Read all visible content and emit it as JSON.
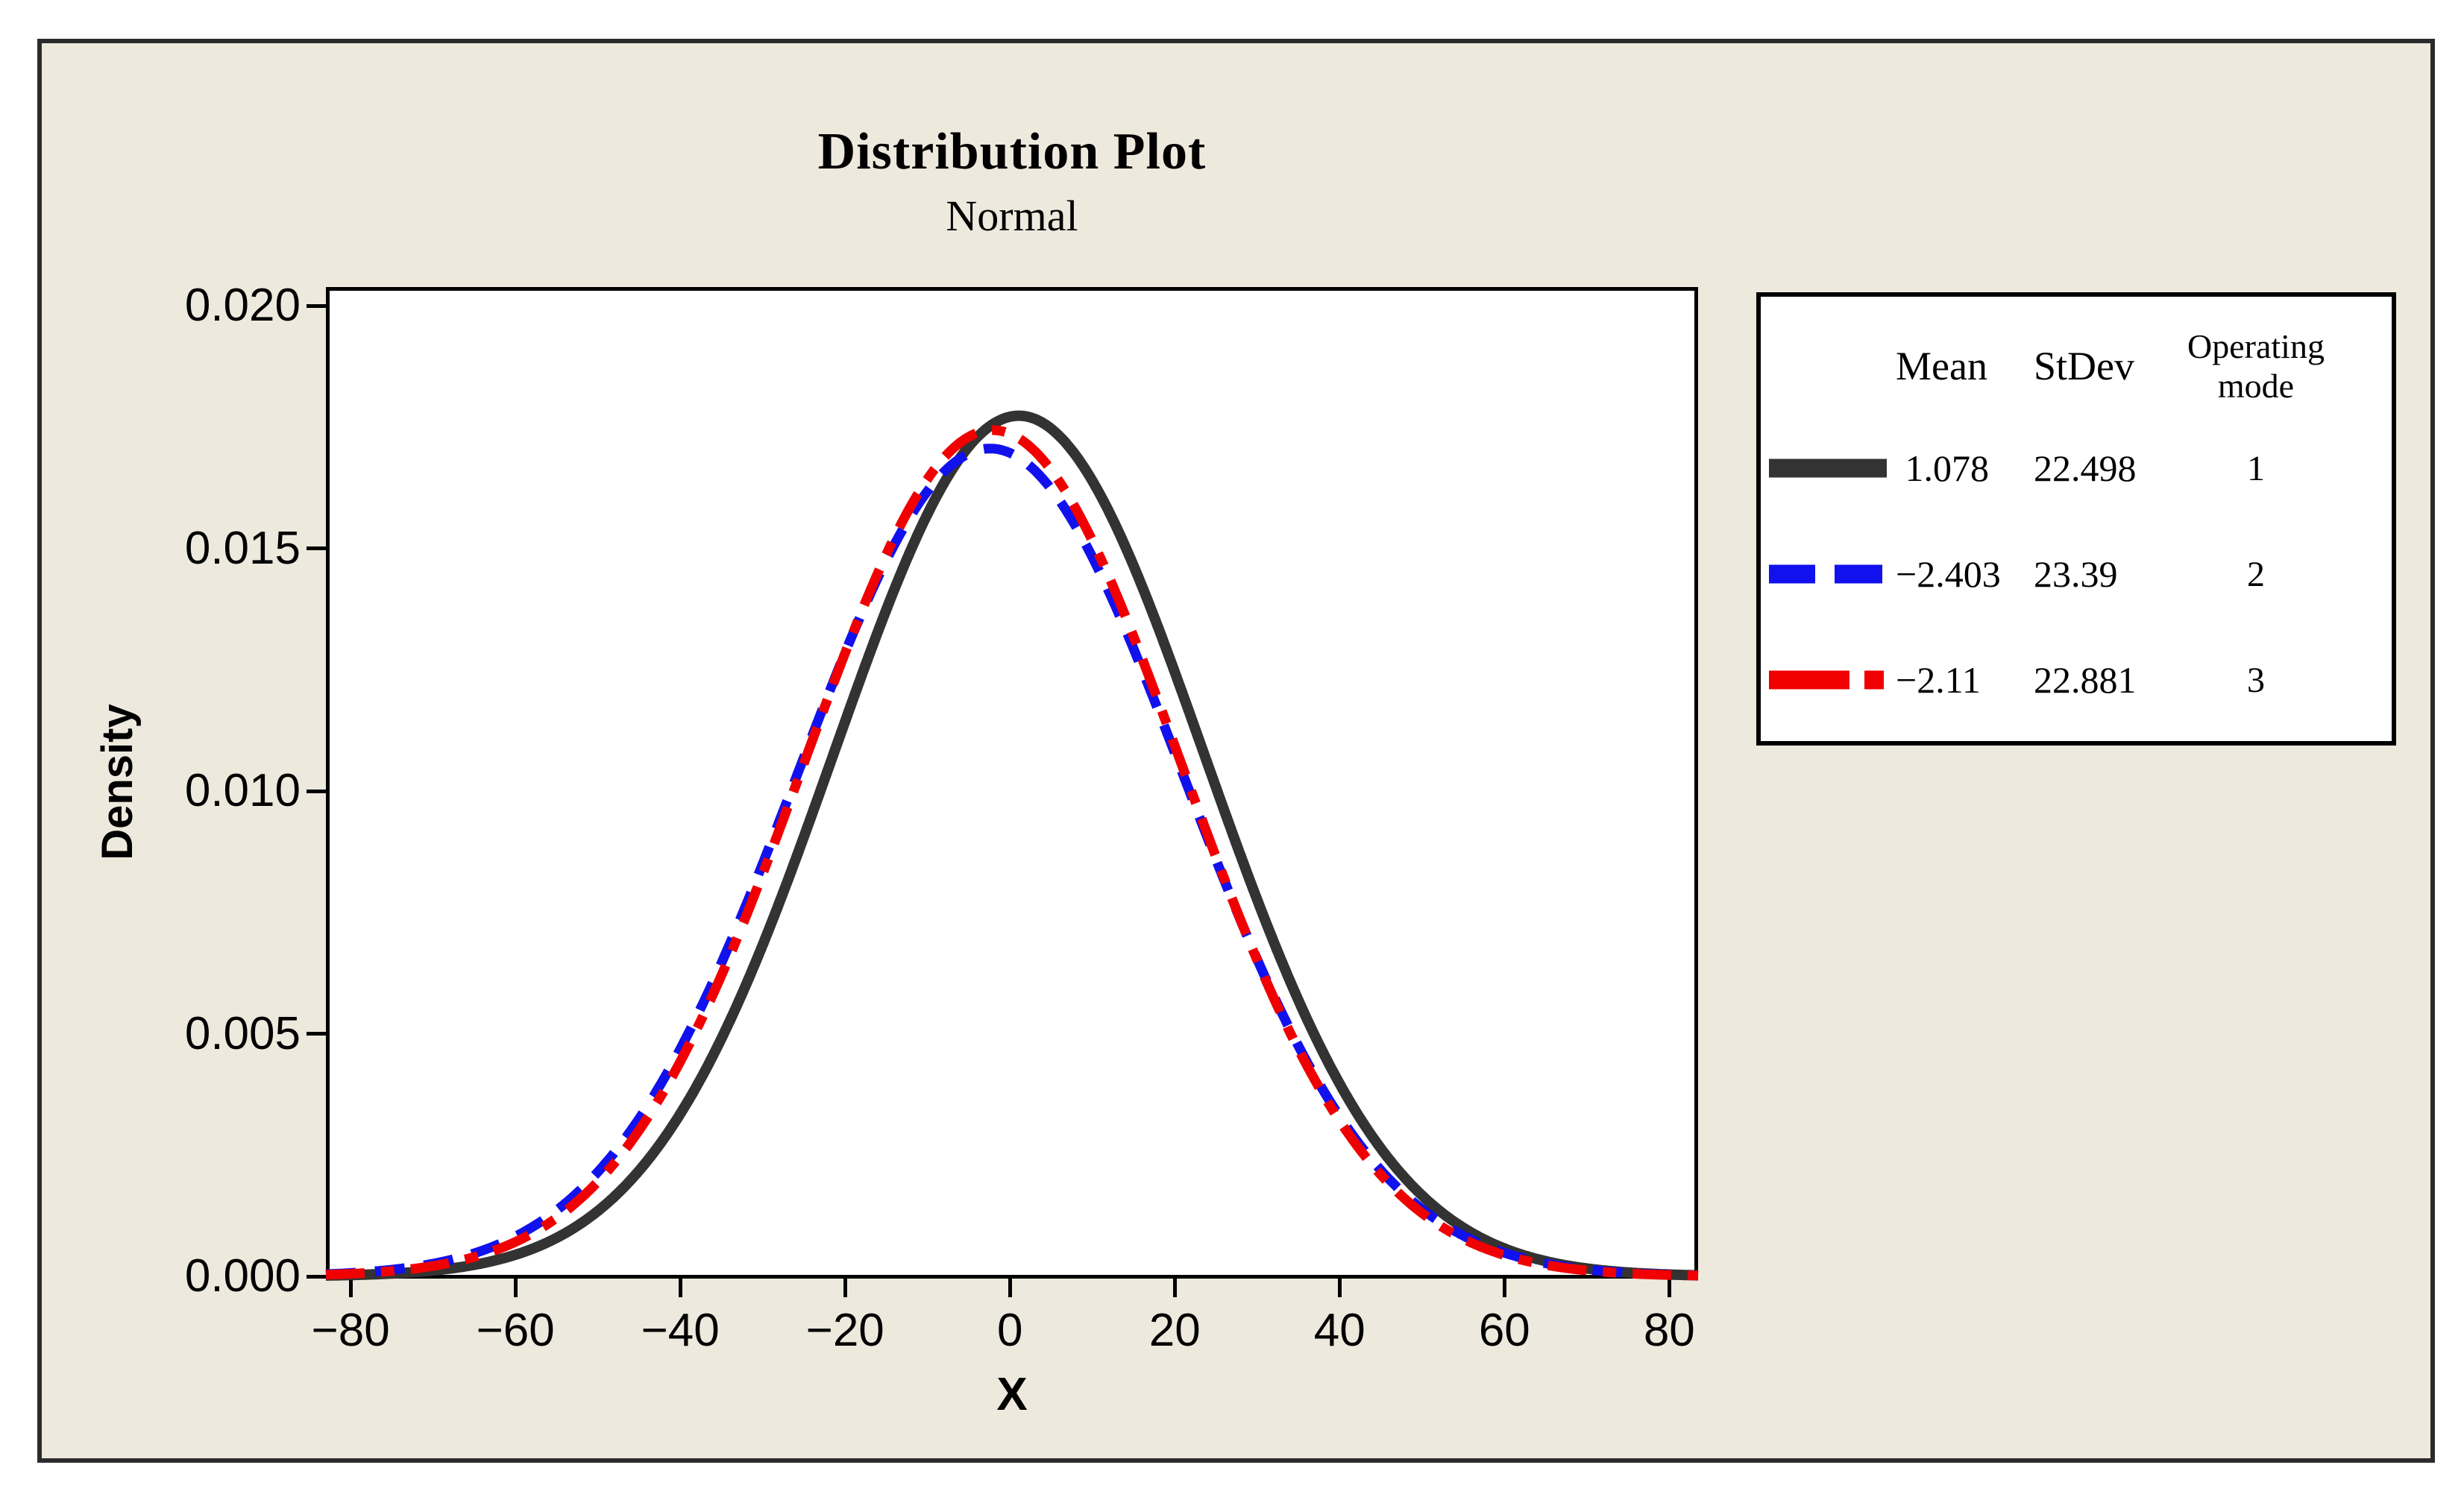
{
  "title": "Distribution Plot",
  "subtitle": "Normal",
  "colors": {
    "canvas_background": "#EDE9DD",
    "plot_background": "#FFFFFF",
    "frame_border": "#2B2B2B",
    "axis_color": "#000000",
    "series_black": "#333333",
    "series_blue": "#1111EE",
    "series_red": "#F00000"
  },
  "chart_data": {
    "type": "line",
    "title": "Distribution Plot",
    "subtitle": "Normal",
    "distribution": "Normal",
    "xlabel": "X",
    "ylabel": "Density",
    "x_range": [
      -83,
      83.5
    ],
    "y_range": [
      0,
      0.0204
    ],
    "grid": "off",
    "legend_position": "outside-top-right",
    "x_ticks": [
      {
        "v": -80,
        "label": "−80"
      },
      {
        "v": -60,
        "label": "−60"
      },
      {
        "v": -40,
        "label": "−40"
      },
      {
        "v": -20,
        "label": "−20"
      },
      {
        "v": 0,
        "label": "0"
      },
      {
        "v": 20,
        "label": "20"
      },
      {
        "v": 40,
        "label": "40"
      },
      {
        "v": 60,
        "label": "60"
      },
      {
        "v": 80,
        "label": "80"
      }
    ],
    "y_ticks": [
      {
        "v": 0.02,
        "label": "0.020"
      },
      {
        "v": 0.015,
        "label": "0.015"
      },
      {
        "v": 0.01,
        "label": "0.010"
      },
      {
        "v": 0.005,
        "label": "0.005"
      },
      {
        "v": 0.0,
        "label": "0.000"
      }
    ],
    "series": [
      {
        "operating_mode": "1",
        "mean": 1.078,
        "stdev": 22.498,
        "mean_label": "1.078",
        "stdev_label": "22.498",
        "color": "#333333",
        "line_style": "solid",
        "stroke_width": 14,
        "dash": null,
        "legend_dash": null,
        "peak_density": 0.01773
      },
      {
        "operating_mode": "2",
        "mean": -2.403,
        "stdev": 23.39,
        "mean_label": "−2.403",
        "stdev_label": "23.39",
        "color": "#1111EE",
        "line_style": "dashed",
        "stroke_width": 13,
        "dash": "40 26",
        "legend_dash": "62 26 64 400",
        "peak_density": 0.01706
      },
      {
        "operating_mode": "3",
        "mean": -2.11,
        "stdev": 22.881,
        "mean_label": "−2.11",
        "stdev_label": "22.881",
        "color": "#F00000",
        "line_style": "dash-dot",
        "stroke_width": 13,
        "dash": "52 22 18 22",
        "legend_dash": "108 20 26 400",
        "peak_density": 0.01744
      }
    ],
    "legend": {
      "headers": {
        "mean": "Mean",
        "stdev": "StDev",
        "mode": "Operating mode"
      }
    }
  }
}
